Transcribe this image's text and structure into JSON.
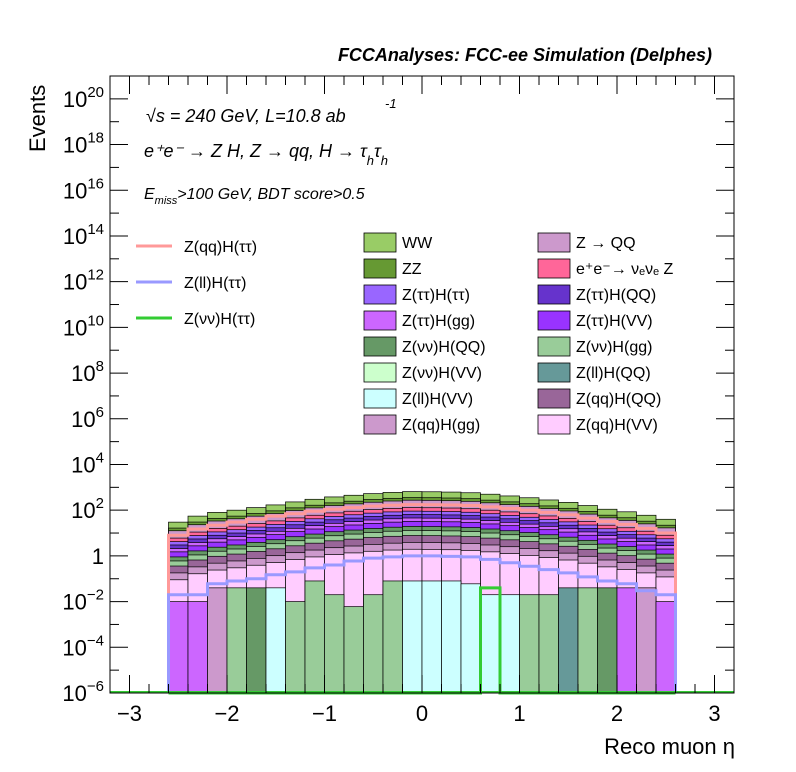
{
  "chart_data": {
    "type": "area",
    "title": "FCCAnalyses: FCC-ee Simulation (Delphes)",
    "xlabel": "Reco muon η",
    "ylabel": "Events",
    "xlim": [
      -3.2,
      3.2
    ],
    "ylim": [
      1e-06,
      1e+21
    ],
    "log_y": true,
    "grid": false,
    "x_ticks": [
      "−3",
      "−2",
      "−1",
      "0",
      "1",
      "2",
      "3"
    ],
    "y_ticks": [
      {
        "base": "10",
        "exp": "−6",
        "value": 1e-06
      },
      {
        "base": "10",
        "exp": "−4",
        "value": 0.0001
      },
      {
        "base": "10",
        "exp": "−2",
        "value": 0.01
      },
      {
        "base": "1",
        "exp": "",
        "value": 1
      },
      {
        "base": "10",
        "exp": "2",
        "value": 100.0
      },
      {
        "base": "10",
        "exp": "4",
        "value": 10000.0
      },
      {
        "base": "10",
        "exp": "6",
        "value": 1000000.0
      },
      {
        "base": "10",
        "exp": "8",
        "value": 100000000.0
      },
      {
        "base": "10",
        "exp": "10",
        "value": 10000000000.0
      },
      {
        "base": "10",
        "exp": "12",
        "value": 1000000000000.0
      },
      {
        "base": "10",
        "exp": "14",
        "value": 100000000000000.0
      },
      {
        "base": "10",
        "exp": "16",
        "value": 1e+16
      },
      {
        "base": "10",
        "exp": "18",
        "value": 1e+18
      },
      {
        "base": "10",
        "exp": "20",
        "value": 1e+20
      }
    ],
    "annotations": {
      "energy": "√s = 240 GeV, L=10.8 ab",
      "energy_sup": "-1",
      "process": "e⁺e⁻ → Z H, Z → qq, H → τ",
      "process_sub": "h",
      "process_tau2": "τ",
      "process_sub2": "h",
      "cuts_pre": "E",
      "cuts_sub": "miss",
      "cuts_post": ">100 GeV, BDT score>0.5"
    },
    "bin_edges": [
      -2.6,
      -2.4,
      -2.2,
      -2.0,
      -1.8,
      -1.6,
      -1.4,
      -1.2,
      -1.0,
      -0.8,
      -0.6,
      -0.4,
      -0.2,
      0.0,
      0.2,
      0.4,
      0.6,
      0.8,
      1.0,
      1.2,
      1.4,
      1.6,
      1.8,
      2.0,
      2.2,
      2.4,
      2.6
    ],
    "stack_top_values": [
      30,
      55,
      80,
      100,
      130,
      170,
      230,
      300,
      380,
      450,
      530,
      600,
      650,
      640,
      620,
      580,
      500,
      420,
      350,
      280,
      220,
      160,
      110,
      85,
      60,
      40
    ],
    "stack_layers": [
      {
        "name": "WW",
        "color": "#99cc66",
        "frac": 1.0
      },
      {
        "name": "ZZ",
        "color": "#669933",
        "frac": 0.55
      },
      {
        "name": "Z → QQ",
        "color": "#cc99cc",
        "frac": 0.42
      },
      {
        "name": "e⁺e⁻→ νₑνₑ Z",
        "color": "#ff6699",
        "frac": 0.2
      },
      {
        "name": "Z(ττ)H(ττ)",
        "color": "#9966ff",
        "frac": 0.14
      },
      {
        "name": "Z(ττ)H(QQ)",
        "color": "#6633cc",
        "frac": 0.1
      },
      {
        "name": "Z(ττ)H(gg)",
        "color": "#cc66ff",
        "frac": 0.07
      },
      {
        "name": "Z(ττ)H(VV)",
        "color": "#9933ff",
        "frac": 0.05
      },
      {
        "name": "Z(νν)H(QQ)",
        "color": "#669966",
        "frac": 0.03
      },
      {
        "name": "Z(νν)H(gg)",
        "color": "#99cc99",
        "frac": 0.02
      },
      {
        "name": "Z(qq)H(QQ)",
        "color": "#996699",
        "frac": 0.012
      },
      {
        "name": "Z(qq)H(gg)",
        "color": "#cc99cc",
        "frac": 0.006
      },
      {
        "name": "Z(qq)H(VV)",
        "color": "#ffccff",
        "frac": 0.003
      }
    ],
    "low_bins": [
      {
        "x0": -2.6,
        "x1": -2.4,
        "v": 0.01,
        "c": "#cc66ff"
      },
      {
        "x0": -2.4,
        "x1": -2.2,
        "v": 0.01,
        "c": "#cc66ff"
      },
      {
        "x0": -2.2,
        "x1": -2.0,
        "v": 0.04,
        "c": "#cc99cc"
      },
      {
        "x0": -2.0,
        "x1": -1.8,
        "v": 0.04,
        "c": "#99cc99"
      },
      {
        "x0": -1.8,
        "x1": -1.6,
        "v": 0.04,
        "c": "#669966"
      },
      {
        "x0": -1.6,
        "x1": -1.4,
        "v": 0.04,
        "c": "#ccffff"
      },
      {
        "x0": -1.4,
        "x1": -1.2,
        "v": 0.01,
        "c": "#99cc99"
      },
      {
        "x0": -1.2,
        "x1": -1.0,
        "v": 0.08,
        "c": "#99cc99"
      },
      {
        "x0": -1.0,
        "x1": -0.8,
        "v": 0.02,
        "c": "#99cc99"
      },
      {
        "x0": -0.8,
        "x1": -0.6,
        "v": 0.006,
        "c": "#99cc99"
      },
      {
        "x0": -0.6,
        "x1": -0.4,
        "v": 0.02,
        "c": "#99cc99"
      },
      {
        "x0": -0.4,
        "x1": -0.2,
        "v": 0.08,
        "c": "#99cc99"
      },
      {
        "x0": -0.2,
        "x1": 0.0,
        "v": 0.08,
        "c": "#ccffff"
      },
      {
        "x0": 0.0,
        "x1": 0.2,
        "v": 0.08,
        "c": "#ccffff"
      },
      {
        "x0": 0.2,
        "x1": 0.4,
        "v": 0.08,
        "c": "#ccffff"
      },
      {
        "x0": 0.4,
        "x1": 0.6,
        "v": 0.06,
        "c": "#ccffff"
      },
      {
        "x0": 0.6,
        "x1": 0.8,
        "v": 0.02,
        "c": "#ccffff"
      },
      {
        "x0": 0.8,
        "x1": 1.0,
        "v": 0.02,
        "c": "#ccffff"
      },
      {
        "x0": 1.0,
        "x1": 1.2,
        "v": 0.02,
        "c": "#99cc99"
      },
      {
        "x0": 1.2,
        "x1": 1.4,
        "v": 0.02,
        "c": "#99cc99"
      },
      {
        "x0": 1.4,
        "x1": 1.6,
        "v": 0.04,
        "c": "#669999"
      },
      {
        "x0": 1.6,
        "x1": 1.8,
        "v": 0.04,
        "c": "#99cc99"
      },
      {
        "x0": 1.8,
        "x1": 2.0,
        "v": 0.04,
        "c": "#669966"
      },
      {
        "x0": 2.0,
        "x1": 2.2,
        "v": 0.04,
        "c": "#cc66ff"
      },
      {
        "x0": 2.2,
        "x1": 2.4,
        "v": 0.04,
        "c": "#cc99cc"
      },
      {
        "x0": 2.4,
        "x1": 2.6,
        "v": 0.01,
        "c": "#cc66ff"
      }
    ],
    "lines": [
      {
        "name": "Z(qq)H(ττ)",
        "color": "#ff9999",
        "values": [
          8,
          15,
          22,
          30,
          40,
          55,
          70,
          90,
          110,
          130,
          150,
          165,
          175,
          172,
          168,
          160,
          140,
          120,
          100,
          80,
          62,
          45,
          32,
          24,
          16,
          10
        ]
      },
      {
        "name": "Z(ll)H(ττ)",
        "color": "#9999ff",
        "values": [
          0.02,
          0.02,
          0.06,
          0.08,
          0.1,
          0.15,
          0.2,
          0.3,
          0.4,
          0.6,
          0.8,
          0.9,
          1.0,
          1.0,
          0.95,
          0.9,
          0.7,
          0.5,
          0.35,
          0.25,
          0.18,
          0.12,
          0.08,
          0.06,
          0.03,
          0.02
        ]
      },
      {
        "name": "Z(νν)H(ττ)",
        "color": "#33cc33",
        "values": [
          1e-06,
          1e-06,
          1e-06,
          1e-06,
          1e-06,
          1e-06,
          1e-06,
          1e-06,
          1e-06,
          1e-06,
          1e-06,
          1e-06,
          1e-06,
          1e-06,
          1e-06,
          1e-06,
          0.04,
          1e-06,
          1e-06,
          1e-06,
          1e-06,
          1e-06,
          1e-06,
          1e-06,
          1e-06,
          1e-06
        ]
      }
    ],
    "legend_lines": [
      {
        "label": "Z(qq)H(ττ)",
        "color": "#ff9999"
      },
      {
        "label": "Z(ll)H(ττ)",
        "color": "#9999ff"
      },
      {
        "label": "Z(νν)H(ττ)",
        "color": "#33cc33"
      }
    ],
    "legend_boxes": [
      {
        "label": "WW",
        "color": "#99cc66"
      },
      {
        "label": "Z → QQ",
        "color": "#cc99cc"
      },
      {
        "label": "ZZ",
        "color": "#669933"
      },
      {
        "label": "e⁺e⁻→ νₑνₑ Z",
        "color": "#ff6699"
      },
      {
        "label": "Z(ττ)H(ττ)",
        "color": "#9966ff"
      },
      {
        "label": "Z(ττ)H(QQ)",
        "color": "#6633cc"
      },
      {
        "label": "Z(ττ)H(gg)",
        "color": "#cc66ff"
      },
      {
        "label": "Z(ττ)H(VV)",
        "color": "#9933ff"
      },
      {
        "label": "Z(νν)H(QQ)",
        "color": "#669966"
      },
      {
        "label": "Z(νν)H(gg)",
        "color": "#99cc99"
      },
      {
        "label": "Z(νν)H(VV)",
        "color": "#ccffcc"
      },
      {
        "label": "Z(ll)H(QQ)",
        "color": "#669999"
      },
      {
        "label": "Z(ll)H(VV)",
        "color": "#ccffff"
      },
      {
        "label": "Z(qq)H(QQ)",
        "color": "#996699"
      },
      {
        "label": "Z(qq)H(gg)",
        "color": "#cc99cc"
      },
      {
        "label": "Z(qq)H(VV)",
        "color": "#ffccff"
      }
    ]
  }
}
